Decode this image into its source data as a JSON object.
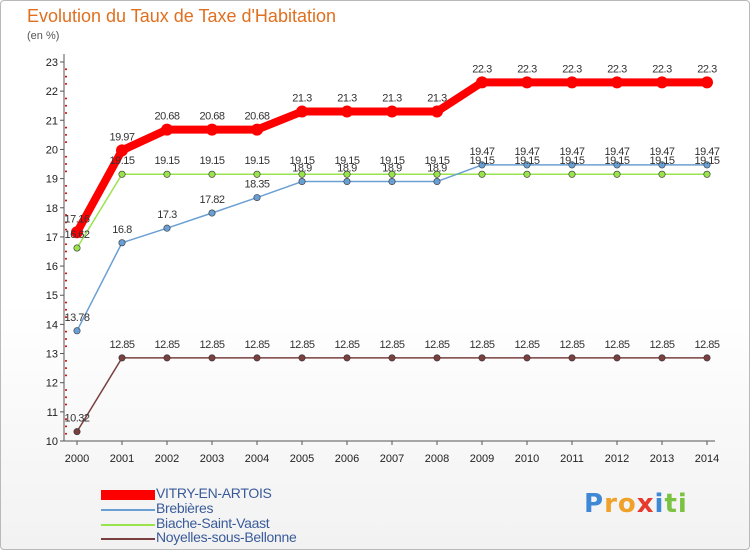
{
  "header": {
    "title": "Evolution du Taux de Taxe d'Habitation",
    "unit": "(en %)"
  },
  "chart_data": {
    "type": "line",
    "title": "Evolution du Taux de Taxe d'Habitation",
    "ylabel": "(en %)",
    "xlabel": "",
    "x": [
      "2000",
      "2001",
      "2002",
      "2003",
      "2004",
      "2005",
      "2006",
      "2007",
      "2008",
      "2009",
      "2010",
      "2011",
      "2012",
      "2013",
      "2014"
    ],
    "ylim": [
      10,
      23
    ],
    "yticks": [
      "10",
      "11",
      "12",
      "13",
      "14",
      "15",
      "16",
      "17",
      "18",
      "19",
      "20",
      "21",
      "22",
      "23"
    ],
    "grid": false,
    "legend_position": "bottom-left",
    "series": [
      {
        "name": "VITRY-EN-ARTOIS",
        "color": "#ff0000",
        "values": [
          17.16,
          19.97,
          20.68,
          20.68,
          20.68,
          21.3,
          21.3,
          21.3,
          21.3,
          22.3,
          22.3,
          22.3,
          22.3,
          22.3,
          22.3
        ],
        "labels": [
          "17.16",
          "19.97",
          "20.68",
          "20.68",
          "20.68",
          "21.3",
          "21.3",
          "21.3",
          "21.3",
          "22.3",
          "22.3",
          "22.3",
          "22.3",
          "22.3",
          "22.3"
        ]
      },
      {
        "name": "Brebières",
        "color": "#6a9fd4",
        "values": [
          13.78,
          16.8,
          17.3,
          17.82,
          18.35,
          18.9,
          18.9,
          18.9,
          18.9,
          19.47,
          19.47,
          19.47,
          19.47,
          19.47,
          19.47
        ],
        "labels": [
          "13.78",
          "16.8",
          "17.3",
          "17.82",
          "18.35",
          "18.9",
          "18.9",
          "18.9",
          "18.9",
          "19.47",
          "19.47",
          "19.47",
          "19.47",
          "19.47",
          "19.47"
        ]
      },
      {
        "name": "Biache-Saint-Vaast",
        "color": "#99e34d",
        "values": [
          16.62,
          19.15,
          19.15,
          19.15,
          19.15,
          19.15,
          19.15,
          19.15,
          19.15,
          19.15,
          19.15,
          19.15,
          19.15,
          19.15,
          19.15
        ],
        "labels": [
          "16.62",
          "19.15",
          "19.15",
          "19.15",
          "19.15",
          "19.15",
          "19.15",
          "19.15",
          "19.15",
          "19.15",
          "19.15",
          "19.15",
          "19.15",
          "19.15",
          "19.15"
        ]
      },
      {
        "name": "Noyelles-sous-Bellonne",
        "color": "#7a3f3f",
        "values": [
          10.32,
          12.85,
          12.85,
          12.85,
          12.85,
          12.85,
          12.85,
          12.85,
          12.85,
          12.85,
          12.85,
          12.85,
          12.85,
          12.85,
          12.85
        ],
        "labels": [
          "10.32",
          "12.85",
          "12.85",
          "12.85",
          "12.85",
          "12.85",
          "12.85",
          "12.85",
          "12.85",
          "12.85",
          "12.85",
          "12.85",
          "12.85",
          "12.85",
          "12.85"
        ]
      }
    ]
  },
  "legend": {
    "items": [
      {
        "label": "VITRY-EN-ARTOIS",
        "color": "#ff0000"
      },
      {
        "label": "Brebières",
        "color": "#6a9fd4"
      },
      {
        "label": "Biache-Saint-Vaast",
        "color": "#99e34d"
      },
      {
        "label": "Noyelles-sous-Bellonne",
        "color": "#7a3f3f"
      }
    ]
  },
  "logo": {
    "text": "Proxiti",
    "letters": [
      {
        "ch": "P",
        "color": "#3f88d6"
      },
      {
        "ch": "r",
        "color": "#f0a12a"
      },
      {
        "ch": "o",
        "color": "#f0a12a"
      },
      {
        "ch": "x",
        "color": "#e63a2e"
      },
      {
        "ch": "i",
        "color": "#3f88d6"
      },
      {
        "ch": "t",
        "color": "#7cc242"
      },
      {
        "ch": "i",
        "color": "#7cc242"
      }
    ]
  }
}
